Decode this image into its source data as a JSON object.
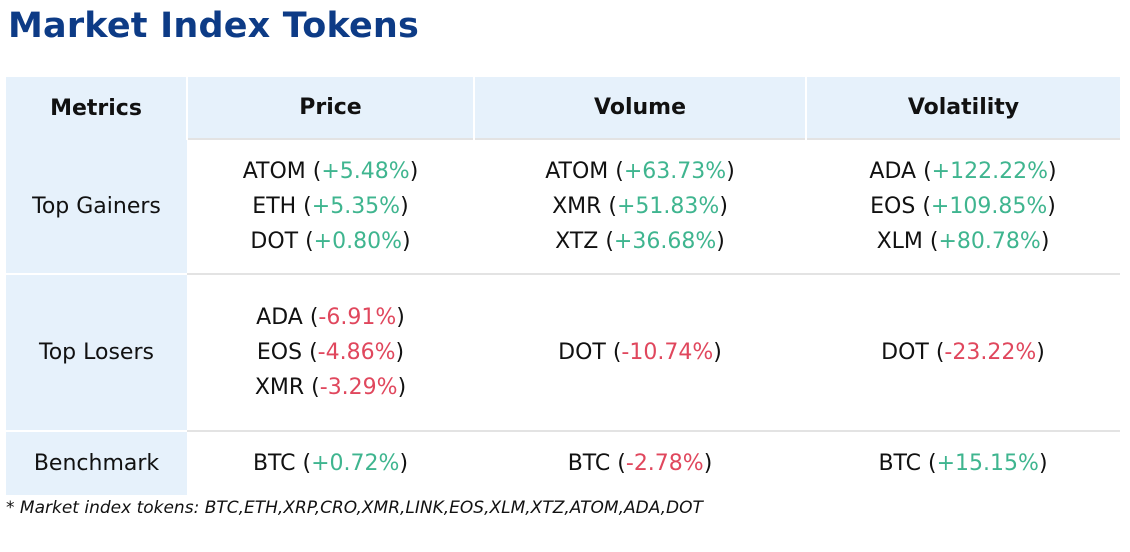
{
  "title": "Market Index Tokens",
  "colors": {
    "title": "#0d3b86",
    "header_bg": "#e6f1fb",
    "positive": "#3fb58f",
    "negative": "#e0475d"
  },
  "table": {
    "headers": [
      "Metrics",
      "Price",
      "Volume",
      "Volatility"
    ],
    "rows": [
      {
        "label": "Top Gainers",
        "cells": [
          [
            {
              "token": "ATOM",
              "change": "+5.48%",
              "sign": "pos"
            },
            {
              "token": "ETH",
              "change": "+5.35%",
              "sign": "pos"
            },
            {
              "token": "DOT",
              "change": "+0.80%",
              "sign": "pos"
            }
          ],
          [
            {
              "token": "ATOM",
              "change": "+63.73%",
              "sign": "pos"
            },
            {
              "token": "XMR",
              "change": "+51.83%",
              "sign": "pos"
            },
            {
              "token": "XTZ",
              "change": "+36.68%",
              "sign": "pos"
            }
          ],
          [
            {
              "token": "ADA",
              "change": "+122.22%",
              "sign": "pos"
            },
            {
              "token": "EOS",
              "change": "+109.85%",
              "sign": "pos"
            },
            {
              "token": "XLM",
              "change": "+80.78%",
              "sign": "pos"
            }
          ]
        ]
      },
      {
        "label": "Top Losers",
        "cells": [
          [
            {
              "token": "ADA",
              "change": "-6.91%",
              "sign": "neg"
            },
            {
              "token": "EOS",
              "change": "-4.86%",
              "sign": "neg"
            },
            {
              "token": "XMR",
              "change": "-3.29%",
              "sign": "neg"
            }
          ],
          [
            {
              "token": "DOT",
              "change": "-10.74%",
              "sign": "neg"
            }
          ],
          [
            {
              "token": "DOT",
              "change": "-23.22%",
              "sign": "neg"
            }
          ]
        ]
      },
      {
        "label": "Benchmark",
        "cells": [
          [
            {
              "token": "BTC",
              "change": "+0.72%",
              "sign": "pos"
            }
          ],
          [
            {
              "token": "BTC",
              "change": "-2.78%",
              "sign": "neg"
            }
          ],
          [
            {
              "token": "BTC",
              "change": "+15.15%",
              "sign": "pos"
            }
          ]
        ]
      }
    ]
  },
  "footnote": "* Market index tokens: BTC,ETH,XRP,CRO,XMR,LINK,EOS,XLM,XTZ,ATOM,ADA,DOT"
}
